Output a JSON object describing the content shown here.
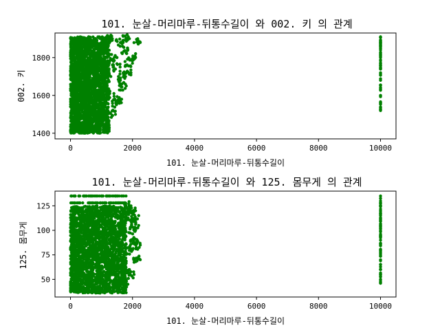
{
  "colors": {
    "points": "#008000",
    "axes": "#000000",
    "background": "#ffffff"
  },
  "chart_data": [
    {
      "type": "scatter",
      "title": "101. 눈살-머리마루-뒤통수길이  와 002. 키 의 관계",
      "xlabel": "101. 눈살-머리마루-뒤통수길이",
      "ylabel": "002. 키",
      "xlim": [
        -500,
        10500
      ],
      "ylim": [
        1370,
        1930
      ],
      "xticks": [
        0,
        2000,
        4000,
        6000,
        8000,
        10000
      ],
      "yticks": [
        1400,
        1600,
        1800
      ],
      "grid": false,
      "series": [
        {
          "color": "#008000",
          "cluster": {
            "x_min": 0,
            "x_max": 1250,
            "y_min": 1400,
            "y_max": 1910
          },
          "tail": [
            {
              "x": 1250,
              "y": 1430
            },
            {
              "x": 1450,
              "y": 1500
            },
            {
              "x": 1650,
              "y": 1580
            },
            {
              "x": 1800,
              "y": 1650
            },
            {
              "x": 1950,
              "y": 1720
            },
            {
              "x": 2100,
              "y": 1800
            },
            {
              "x": 2250,
              "y": 1880
            },
            {
              "x": 1300,
              "y": 1700
            },
            {
              "x": 1500,
              "y": 1800
            },
            {
              "x": 1700,
              "y": 1880
            },
            {
              "x": 1400,
              "y": 1610
            },
            {
              "x": 1600,
              "y": 1750
            },
            {
              "x": 1850,
              "y": 1840
            },
            {
              "x": 2000,
              "y": 1770
            },
            {
              "x": 1550,
              "y": 1560
            },
            {
              "x": 1750,
              "y": 1690
            },
            {
              "x": 1350,
              "y": 1900
            },
            {
              "x": 1900,
              "y": 1900
            }
          ],
          "outlier_x": 10000,
          "outlier_y": [
            1520,
            1560,
            1600,
            1640,
            1680,
            1720,
            1760,
            1800,
            1840,
            1880,
            1910
          ]
        }
      ]
    },
    {
      "type": "scatter",
      "title": "101. 눈살-머리마루-뒤통수길이  와 125. 몸무게 의 관계",
      "xlabel": "101. 눈살-머리마루-뒤통수길이",
      "ylabel": "125. 몸무게",
      "xlim": [
        -500,
        10500
      ],
      "ylim": [
        32,
        140
      ],
      "xticks": [
        0,
        2000,
        4000,
        6000,
        8000,
        10000
      ],
      "yticks": [
        50,
        75,
        100,
        125
      ],
      "grid": false,
      "series": [
        {
          "color": "#008000",
          "cluster": {
            "x_min": 0,
            "x_max": 1800,
            "y_min": 36,
            "y_max": 125
          },
          "tail": [
            {
              "x": 1900,
              "y": 60
            },
            {
              "x": 2000,
              "y": 80
            },
            {
              "x": 2100,
              "y": 100
            },
            {
              "x": 2200,
              "y": 115
            },
            {
              "x": 2250,
              "y": 70
            },
            {
              "x": 2100,
              "y": 120
            },
            {
              "x": 1950,
              "y": 125
            },
            {
              "x": 2150,
              "y": 90
            },
            {
              "x": 2050,
              "y": 55
            },
            {
              "x": 1850,
              "y": 45
            },
            {
              "x": 2200,
              "y": 105
            },
            {
              "x": 2000,
              "y": 110
            },
            {
              "x": 1900,
              "y": 118
            },
            {
              "x": 2250,
              "y": 85
            }
          ],
          "top_band": {
            "x_min": 0,
            "x_max": 1800,
            "y_values": [
              128,
              135
            ]
          },
          "outlier_x": 10000,
          "outlier_y": [
            46,
            50,
            55,
            60,
            65,
            70,
            75,
            80,
            85,
            90,
            95,
            100,
            105,
            110,
            115,
            120,
            125,
            130,
            135
          ]
        }
      ]
    }
  ]
}
